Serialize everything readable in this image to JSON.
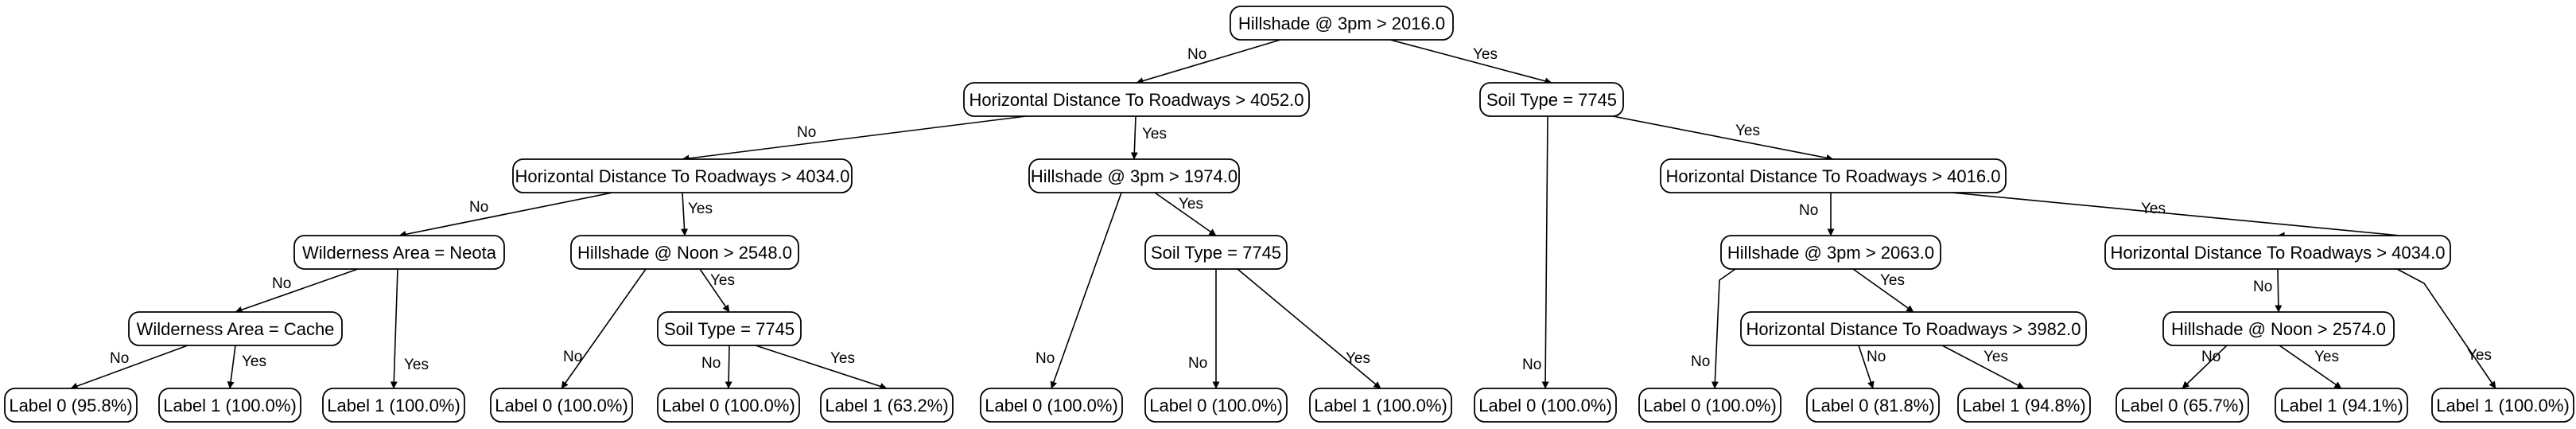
{
  "tree": {
    "nodes": [
      {
        "id": "n0",
        "text": "Hillshade @ 3pm > 2016.0"
      },
      {
        "id": "n1",
        "text": "Horizontal Distance To Roadways > 4052.0"
      },
      {
        "id": "n2",
        "text": "Soil Type = 7745"
      },
      {
        "id": "n3",
        "text": "Horizontal Distance To Roadways > 4034.0"
      },
      {
        "id": "n4",
        "text": "Hillshade @ 3pm > 1974.0"
      },
      {
        "id": "n5",
        "text": "Horizontal Distance To Roadways > 4016.0"
      },
      {
        "id": "n6",
        "text": "Wilderness Area = Neota"
      },
      {
        "id": "n7",
        "text": "Hillshade @ Noon > 2548.0"
      },
      {
        "id": "n8",
        "text": "Soil Type = 7745"
      },
      {
        "id": "n9",
        "text": "Hillshade @ 3pm > 2063.0"
      },
      {
        "id": "n10",
        "text": "Horizontal Distance To Roadways > 4034.0"
      },
      {
        "id": "n11",
        "text": "Wilderness Area = Cache"
      },
      {
        "id": "n12",
        "text": "Soil Type = 7745"
      },
      {
        "id": "n13",
        "text": "Horizontal Distance To Roadways > 3982.0"
      },
      {
        "id": "n14",
        "text": "Hillshade @ Noon > 2574.0"
      },
      {
        "id": "l1",
        "text": "Label 0 (95.8%)"
      },
      {
        "id": "l2",
        "text": "Label 1 (100.0%)"
      },
      {
        "id": "l3",
        "text": "Label 1 (100.0%)"
      },
      {
        "id": "l4",
        "text": "Label 0 (100.0%)"
      },
      {
        "id": "l5",
        "text": "Label 0 (100.0%)"
      },
      {
        "id": "l6",
        "text": "Label 1 (63.2%)"
      },
      {
        "id": "l7",
        "text": "Label 0 (100.0%)"
      },
      {
        "id": "l8",
        "text": "Label 0 (100.0%)"
      },
      {
        "id": "l9",
        "text": "Label 1 (100.0%)"
      },
      {
        "id": "l10",
        "text": "Label 0 (100.0%)"
      },
      {
        "id": "l11",
        "text": "Label 0 (100.0%)"
      },
      {
        "id": "l12",
        "text": "Label 0 (81.8%)"
      },
      {
        "id": "l13",
        "text": "Label 1 (94.8%)"
      },
      {
        "id": "l14",
        "text": "Label 0 (65.7%)"
      },
      {
        "id": "l15",
        "text": "Label 1 (94.1%)"
      },
      {
        "id": "l16",
        "text": "Label 1 (100.0%)"
      }
    ],
    "edges": [
      {
        "from": "n0",
        "to": "n1",
        "label": "No"
      },
      {
        "from": "n0",
        "to": "n2",
        "label": "Yes"
      },
      {
        "from": "n1",
        "to": "n3",
        "label": "No"
      },
      {
        "from": "n1",
        "to": "n4",
        "label": "Yes"
      },
      {
        "from": "n3",
        "to": "n6",
        "label": "No"
      },
      {
        "from": "n3",
        "to": "n7",
        "label": "Yes"
      },
      {
        "from": "n6",
        "to": "n11",
        "label": "No"
      },
      {
        "from": "n6",
        "to": "l3",
        "label": "Yes"
      },
      {
        "from": "n11",
        "to": "l1",
        "label": "No"
      },
      {
        "from": "n11",
        "to": "l2",
        "label": "Yes"
      },
      {
        "from": "n7",
        "to": "l4",
        "label": "No"
      },
      {
        "from": "n7",
        "to": "n12",
        "label": "Yes"
      },
      {
        "from": "n12",
        "to": "l5",
        "label": "No"
      },
      {
        "from": "n12",
        "to": "l6",
        "label": "Yes"
      },
      {
        "from": "n4",
        "to": "l7",
        "label": "No"
      },
      {
        "from": "n4",
        "to": "n8",
        "label": "Yes"
      },
      {
        "from": "n8",
        "to": "l8",
        "label": "No"
      },
      {
        "from": "n8",
        "to": "l9",
        "label": "Yes"
      },
      {
        "from": "n2",
        "to": "l10",
        "label": "No"
      },
      {
        "from": "n2",
        "to": "n5",
        "label": "Yes"
      },
      {
        "from": "n5",
        "to": "n9",
        "label": "No"
      },
      {
        "from": "n5",
        "to": "n10",
        "label": "Yes"
      },
      {
        "from": "n9",
        "to": "l11",
        "label": "No"
      },
      {
        "from": "n9",
        "to": "n13",
        "label": "Yes"
      },
      {
        "from": "n13",
        "to": "l12",
        "label": "No"
      },
      {
        "from": "n13",
        "to": "l13",
        "label": "Yes"
      },
      {
        "from": "n10",
        "to": "n14",
        "label": "No"
      },
      {
        "from": "n10",
        "to": "l16",
        "label": "Yes"
      },
      {
        "from": "n14",
        "to": "l14",
        "label": "No"
      },
      {
        "from": "n14",
        "to": "l15",
        "label": "Yes"
      }
    ]
  }
}
